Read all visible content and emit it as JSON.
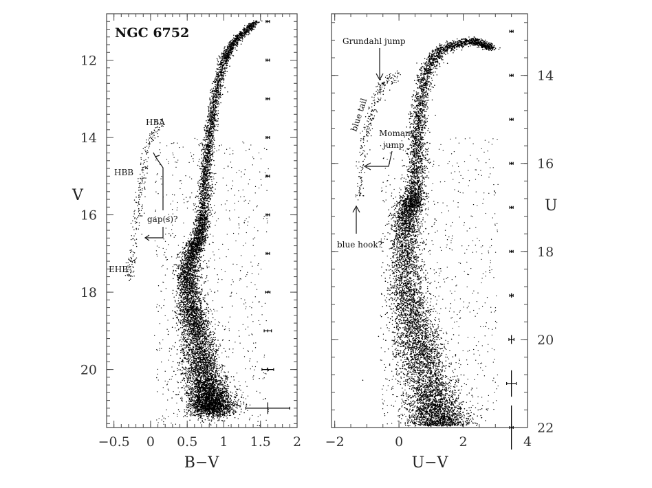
{
  "chart_data": [
    {
      "type": "scatter",
      "panel": "left",
      "title": "NGC 6752",
      "xlabel": "B−V",
      "ylabel": "V",
      "xlim": [
        -0.6,
        2.0
      ],
      "ylim": [
        21.5,
        10.8
      ],
      "y_inverted": true,
      "x_ticks": [
        -0.5,
        0,
        0.5,
        1,
        1.5,
        2
      ],
      "x_tick_labels": [
        "−0.5",
        "0",
        "0.5",
        "1",
        "1.5",
        "2"
      ],
      "y_ticks": [
        12,
        14,
        16,
        18,
        20
      ],
      "y_tick_labels": [
        "12",
        "14",
        "16",
        "18",
        "20"
      ],
      "ridge_line": {
        "description": "fiducial sequence of the dense star distribution",
        "points": [
          [
            0.85,
            21.0
          ],
          [
            0.7,
            20.0
          ],
          [
            0.62,
            19.0
          ],
          [
            0.55,
            18.3
          ],
          [
            0.5,
            17.6
          ],
          [
            0.56,
            17.0
          ],
          [
            0.67,
            16.6
          ],
          [
            0.72,
            16.0
          ],
          [
            0.75,
            15.0
          ],
          [
            0.8,
            14.0
          ],
          [
            0.88,
            13.0
          ],
          [
            1.0,
            12.0
          ],
          [
            1.15,
            11.5
          ],
          [
            1.45,
            11.0
          ]
        ]
      },
      "horizontal_branch": [
        [
          0.15,
          13.6
        ],
        [
          0.0,
          14.0
        ],
        [
          -0.1,
          14.8
        ],
        [
          -0.15,
          15.5
        ],
        [
          -0.18,
          16.2
        ],
        [
          -0.25,
          17.2
        ],
        [
          -0.3,
          17.6
        ]
      ],
      "error_bars": {
        "x": 1.6,
        "levels": [
          11,
          12,
          13,
          14,
          15,
          16,
          17,
          18,
          19,
          20,
          21
        ],
        "xerr": [
          0.01,
          0.01,
          0.01,
          0.01,
          0.01,
          0.01,
          0.01,
          0.03,
          0.05,
          0.08,
          0.3
        ],
        "yerr": [
          0.01,
          0.01,
          0.01,
          0.01,
          0.01,
          0.01,
          0.01,
          0.01,
          0.03,
          0.05,
          0.15
        ]
      },
      "annotations": [
        {
          "text": "HBA",
          "x": 0.1,
          "y": 13.3
        },
        {
          "text": "HBB",
          "x": -0.45,
          "y": 14.7
        },
        {
          "text": "gap(s)?",
          "x": 0.3,
          "y": 15.9
        },
        {
          "text": "EHB",
          "x": -0.55,
          "y": 17.4
        }
      ]
    },
    {
      "type": "scatter",
      "panel": "right",
      "xlabel": "U−V",
      "ylabel": "U",
      "xlim": [
        -2.1,
        4.0
      ],
      "ylim": [
        22.0,
        12.6
      ],
      "y_inverted": true,
      "x_ticks": [
        -2,
        0,
        2,
        4
      ],
      "x_tick_labels": [
        "−2",
        "0",
        "2",
        "4"
      ],
      "y_ticks": [
        14,
        16,
        18,
        20,
        22
      ],
      "y_tick_labels": [
        "14",
        "16",
        "18",
        "20",
        "22"
      ],
      "ridge_line": {
        "description": "fiducial sequence of the dense star distribution",
        "points": [
          [
            1.3,
            22.0
          ],
          [
            0.7,
            20.5
          ],
          [
            0.4,
            19.5
          ],
          [
            0.2,
            18.5
          ],
          [
            0.2,
            17.5
          ],
          [
            0.3,
            17.0
          ],
          [
            0.5,
            16.8
          ],
          [
            0.55,
            16.0
          ],
          [
            0.6,
            15.0
          ],
          [
            0.8,
            14.0
          ],
          [
            1.3,
            13.4
          ],
          [
            2.3,
            13.2
          ],
          [
            2.9,
            13.4
          ]
        ]
      },
      "blue_tail": [
        [
          0.0,
          14.0
        ],
        [
          -0.5,
          14.2
        ],
        [
          -0.8,
          14.7
        ],
        [
          -1.0,
          15.3
        ],
        [
          -1.15,
          16.0
        ],
        [
          -1.25,
          16.8
        ]
      ],
      "error_bars": {
        "x": 3.5,
        "levels": [
          13,
          14,
          15,
          16,
          17,
          18,
          19,
          20,
          21,
          22
        ],
        "xerr": [
          0.01,
          0.01,
          0.01,
          0.01,
          0.01,
          0.01,
          0.05,
          0.08,
          0.15,
          0.01
        ],
        "yerr": [
          0.01,
          0.01,
          0.01,
          0.01,
          0.01,
          0.01,
          0.05,
          0.1,
          0.3,
          0.5
        ]
      },
      "annotations": [
        {
          "text": "Grundahl jump",
          "x": -1.6,
          "y": 12.9
        },
        {
          "text": "blue tail",
          "x": -1.2,
          "y": 14.9
        },
        {
          "text": "Momany",
          "x": -0.6,
          "y": 15.4
        },
        {
          "text": "jump",
          "x": -0.4,
          "y": 15.7
        },
        {
          "text": "blue hook?",
          "x": -1.7,
          "y": 17.7
        }
      ]
    }
  ]
}
